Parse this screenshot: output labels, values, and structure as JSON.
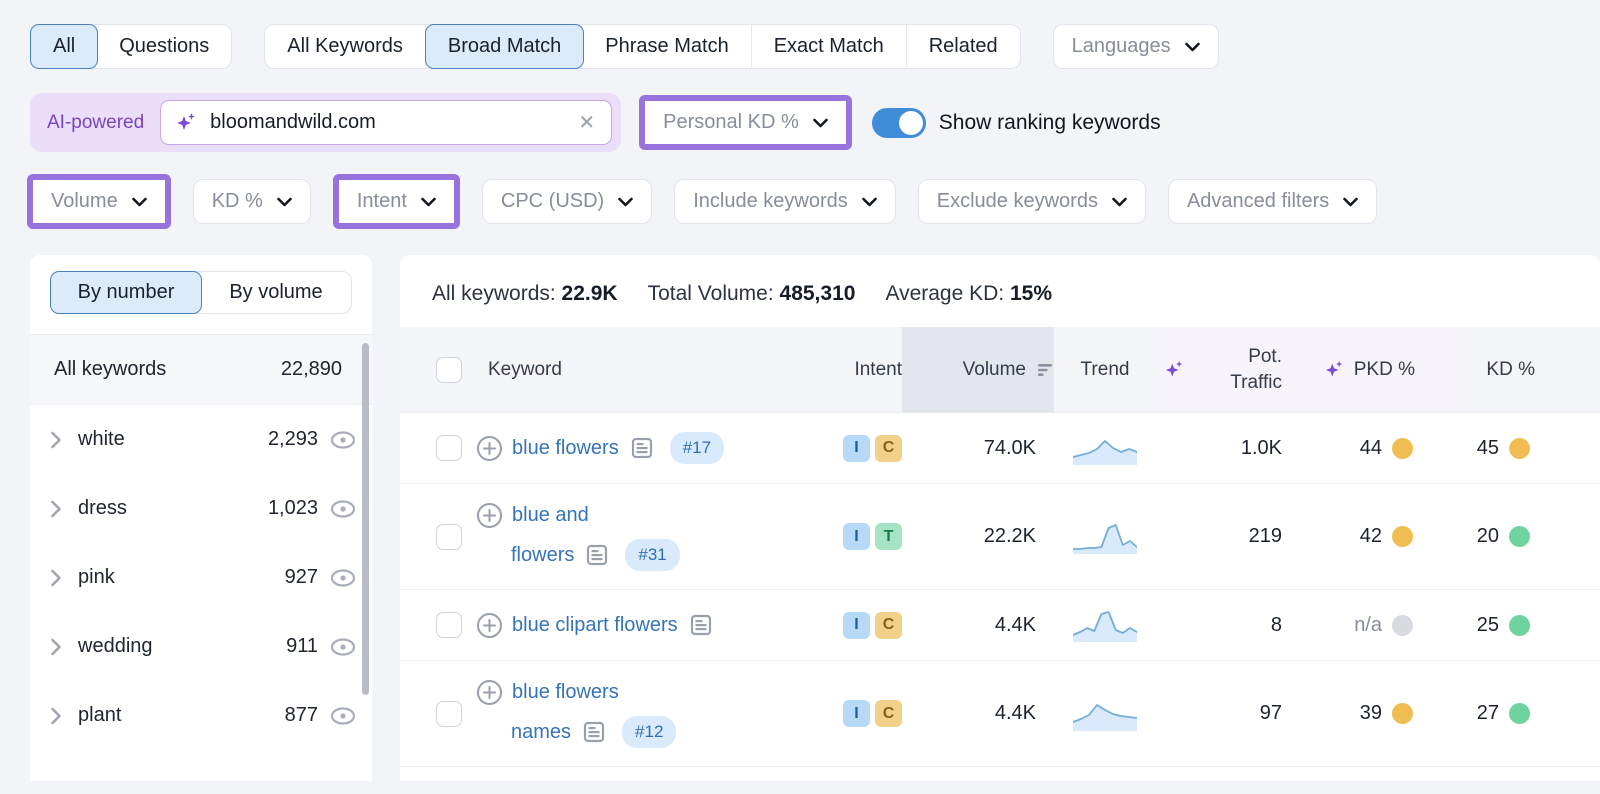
{
  "colors": {
    "annotation_purple": "#9872dd",
    "selected_blue_bg": "#dcebfa",
    "selected_blue_border": "#4a82bc",
    "toggle_on": "#3f8cd8",
    "link_blue": "#3474b8",
    "dot_orange": "#f0bd52",
    "dot_green": "#6fd3a0",
    "dot_gray": "#d9dae1"
  },
  "top_tabs": {
    "group1": [
      {
        "label": "All",
        "selected": true
      },
      {
        "label": "Questions",
        "selected": false
      }
    ],
    "group2": [
      {
        "label": "All Keywords",
        "selected": false
      },
      {
        "label": "Broad Match",
        "selected": true
      },
      {
        "label": "Phrase Match",
        "selected": false
      },
      {
        "label": "Exact Match",
        "selected": false
      },
      {
        "label": "Related",
        "selected": false
      }
    ],
    "languages_label": "Languages"
  },
  "search": {
    "ai_badge": "AI-powered",
    "value": "bloomandwild.com",
    "clear_icon": "close-x",
    "personal_kd_label": "Personal KD %",
    "toggle_label": "Show ranking keywords",
    "toggle_on": true
  },
  "filters": [
    {
      "label": "Volume",
      "highlighted": true
    },
    {
      "label": "KD %",
      "highlighted": false
    },
    {
      "label": "Intent",
      "highlighted": true
    },
    {
      "label": "CPC (USD)",
      "highlighted": false
    },
    {
      "label": "Include keywords",
      "highlighted": false
    },
    {
      "label": "Exclude keywords",
      "highlighted": false
    },
    {
      "label": "Advanced filters",
      "highlighted": false
    }
  ],
  "sidebar": {
    "tabs": [
      {
        "label": "By number",
        "selected": true
      },
      {
        "label": "By volume",
        "selected": false
      }
    ],
    "all_row": {
      "label": "All keywords",
      "count": "22,890"
    },
    "groups": [
      {
        "label": "white",
        "count": "2,293"
      },
      {
        "label": "dress",
        "count": "1,023"
      },
      {
        "label": "pink",
        "count": "927"
      },
      {
        "label": "wedding",
        "count": "911"
      },
      {
        "label": "plant",
        "count": "877"
      }
    ]
  },
  "summary": [
    {
      "label": "All keywords:",
      "value": "22.9K"
    },
    {
      "label": "Total Volume:",
      "value": "485,310"
    },
    {
      "label": "Average KD:",
      "value": "15%"
    }
  ],
  "table": {
    "headers": {
      "keyword": "Keyword",
      "intent": "Intent",
      "volume": "Volume",
      "trend": "Trend",
      "pot_traffic": "Pot. Traffic",
      "pkd": "PKD %",
      "kd": "KD %"
    },
    "rows": [
      {
        "keyword_line1": "blue flowers",
        "keyword_line2": "",
        "rank_badge": "#17",
        "intent": [
          "I",
          "C"
        ],
        "volume": "74.0K",
        "trend": [
          6,
          8,
          10,
          14,
          22,
          15,
          11,
          14,
          11
        ],
        "pot_traffic": "1.0K",
        "pkd": "44",
        "pkd_dot": "orange",
        "kd": "45",
        "kd_dot": "orange"
      },
      {
        "keyword_line1": "blue and",
        "keyword_line2": "flowers",
        "rank_badge": "#31",
        "intent": [
          "I",
          "T"
        ],
        "volume": "22.2K",
        "trend": [
          3,
          3,
          4,
          4,
          5,
          24,
          27,
          7,
          11,
          5
        ],
        "pot_traffic": "219",
        "pkd": "42",
        "pkd_dot": "orange",
        "kd": "20",
        "kd_dot": "green"
      },
      {
        "keyword_line1": "blue clipart flowers",
        "keyword_line2": "",
        "rank_badge": "",
        "intent": [
          "I",
          "C"
        ],
        "volume": "4.4K",
        "trend": [
          5,
          8,
          12,
          9,
          26,
          28,
          10,
          7,
          12,
          8
        ],
        "pot_traffic": "8",
        "pkd": "n/a",
        "pkd_dot": "gray",
        "kd": "25",
        "kd_dot": "green"
      },
      {
        "keyword_line1": "blue flowers",
        "keyword_line2": "names",
        "rank_badge": "#12",
        "intent": [
          "I",
          "C"
        ],
        "volume": "4.4K",
        "trend": [
          7,
          10,
          14,
          24,
          19,
          15,
          13,
          12,
          11
        ],
        "pot_traffic": "97",
        "pkd": "39",
        "pkd_dot": "orange",
        "kd": "27",
        "kd_dot": "green"
      }
    ]
  }
}
